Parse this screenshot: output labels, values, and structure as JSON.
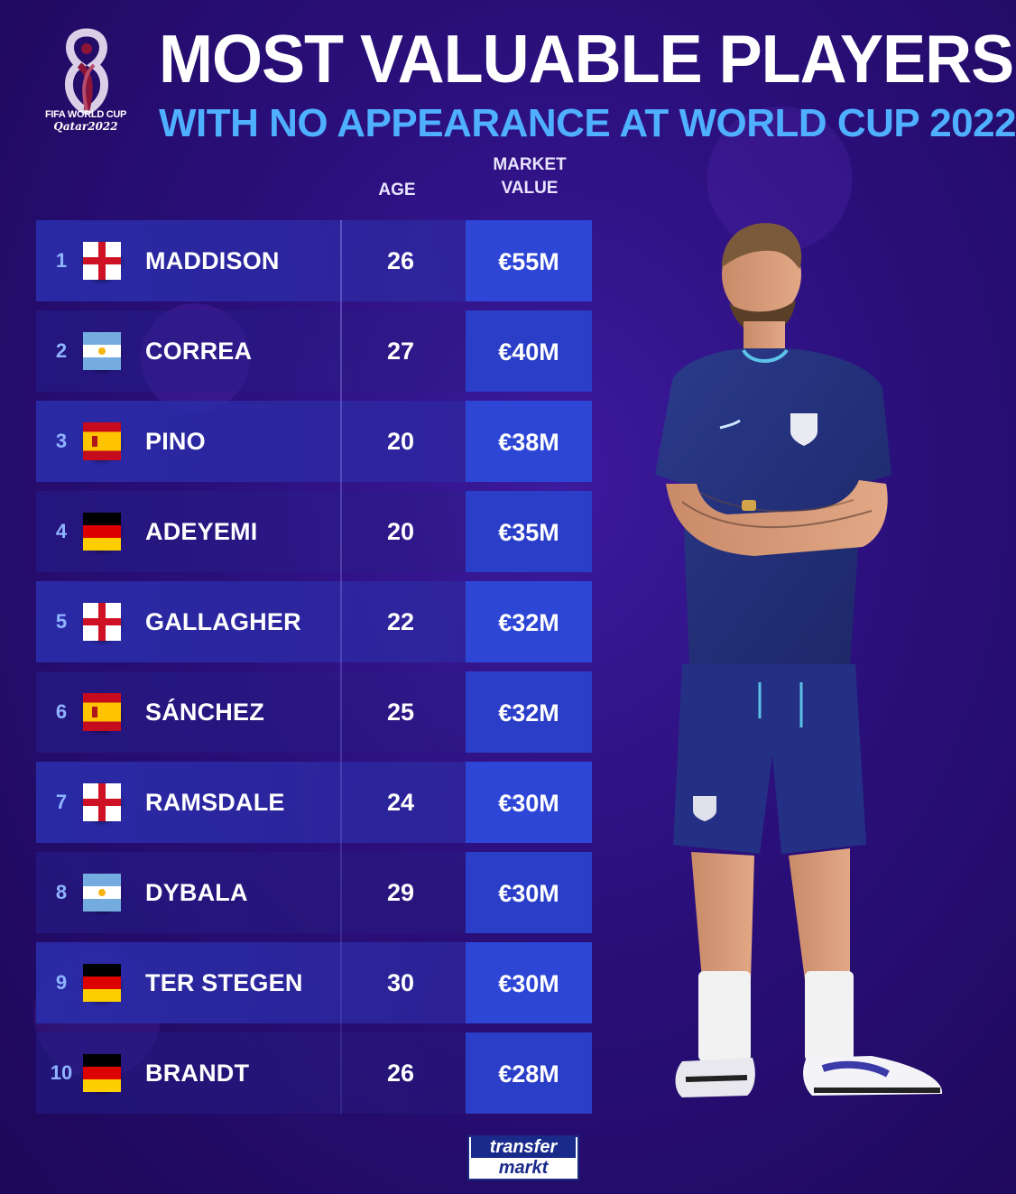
{
  "branding": {
    "event_line1": "FIFA WORLD CUP",
    "event_line2": "Qatar2022",
    "source_line1": "transfer",
    "source_line2": "markt"
  },
  "header": {
    "title": "MOST VALUABLE PLAYERS",
    "subtitle": "WITH NO APPEARANCE AT WORLD CUP 2022"
  },
  "columns": {
    "age": "AGE",
    "market_value": "MARKET VALUE"
  },
  "rows": [
    {
      "rank": "1",
      "flag": "england",
      "name": "MADDISON",
      "age": "26",
      "value": "€55M"
    },
    {
      "rank": "2",
      "flag": "argentina",
      "name": "CORREA",
      "age": "27",
      "value": "€40M"
    },
    {
      "rank": "3",
      "flag": "spain",
      "name": "PINO",
      "age": "20",
      "value": "€38M"
    },
    {
      "rank": "4",
      "flag": "germany",
      "name": "ADEYEMI",
      "age": "20",
      "value": "€35M"
    },
    {
      "rank": "5",
      "flag": "england",
      "name": "GALLAGHER",
      "age": "22",
      "value": "€32M"
    },
    {
      "rank": "6",
      "flag": "spain",
      "name": "SÁNCHEZ",
      "age": "25",
      "value": "€32M"
    },
    {
      "rank": "7",
      "flag": "england",
      "name": "RAMSDALE",
      "age": "24",
      "value": "€30M"
    },
    {
      "rank": "8",
      "flag": "argentina",
      "name": "DYBALA",
      "age": "29",
      "value": "€30M"
    },
    {
      "rank": "9",
      "flag": "germany",
      "name": "TER STEGEN",
      "age": "30",
      "value": "€30M"
    },
    {
      "rank": "10",
      "flag": "germany",
      "name": "BRANDT",
      "age": "26",
      "value": "€28M"
    }
  ],
  "colors": {
    "background": "#2a0f7a",
    "subtitle": "#4fb0ff",
    "value_box": "#2d46d6",
    "rank": "#8fb4ff"
  },
  "image": {
    "player_photo": "england-player-standing-arms-crossed"
  }
}
